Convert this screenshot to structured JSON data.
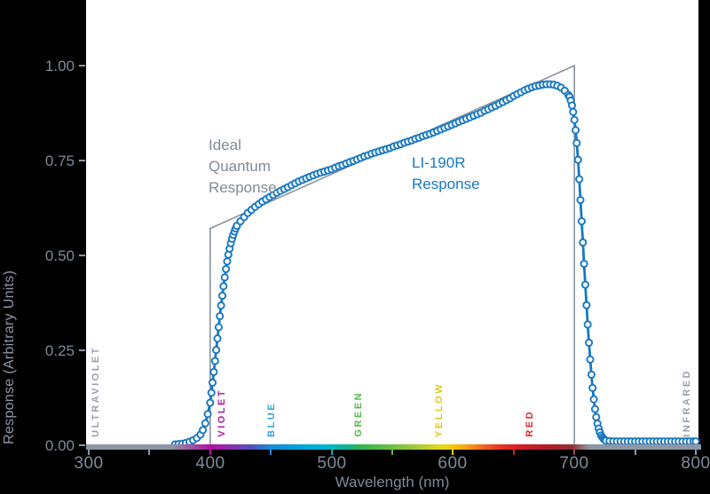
{
  "figure": {
    "background": "#000000",
    "panel_background": "#ffffff"
  },
  "chart_data": {
    "type": "line",
    "title": "",
    "xlabel": "Wavelength (nm)",
    "ylabel": "Response (Arbitrary Units)",
    "xlim": [
      300,
      800
    ],
    "ylim": [
      0,
      1.17
    ],
    "grid": false,
    "legend_position": "none",
    "x_ticks": [
      {
        "nm": 300,
        "label": "300",
        "color": "#8d97a5"
      },
      {
        "nm": 350,
        "label": "",
        "color": "#8d97a5"
      },
      {
        "nm": 400,
        "label": "400",
        "color": "#b012a0"
      },
      {
        "nm": 450,
        "label": "",
        "color": "#1a8ad5"
      },
      {
        "nm": 500,
        "label": "500",
        "color": "#00b2cf"
      },
      {
        "nm": 550,
        "label": "",
        "color": "#55ba47"
      },
      {
        "nm": 600,
        "label": "600",
        "color": "#f2c70b"
      },
      {
        "nm": 650,
        "label": "",
        "color": "#d21f26"
      },
      {
        "nm": 700,
        "label": "700",
        "color": "#8f4a55"
      },
      {
        "nm": 750,
        "label": "",
        "color": "#8d97a5"
      },
      {
        "nm": 800,
        "label": "800",
        "color": "#8d97a5"
      }
    ],
    "y_ticks": [
      {
        "value": 0.0,
        "label": "0.00"
      },
      {
        "value": 0.25,
        "label": "0.25"
      },
      {
        "value": 0.5,
        "label": "0.50"
      },
      {
        "value": 0.75,
        "label": "0.75"
      },
      {
        "value": 1.0,
        "label": "1.00"
      }
    ],
    "series": [
      {
        "name": "Ideal Quantum Response",
        "style": "line",
        "color": "#8a939f",
        "line_width": 1.6,
        "points": [
          [
            400,
            0
          ],
          [
            400,
            0.571
          ],
          [
            700,
            1.0
          ],
          [
            700,
            0
          ]
        ]
      },
      {
        "name": "LI-190R Response",
        "style": "line+markers",
        "color": "#1778c2",
        "marker_fill": "#ffffff",
        "line_width": 2.8,
        "marker_radius": 3.6,
        "points": [
          [
            371,
            0.002
          ],
          [
            374,
            0.003
          ],
          [
            377,
            0.004
          ],
          [
            380,
            0.006
          ],
          [
            383,
            0.009
          ],
          [
            386,
            0.013
          ],
          [
            389,
            0.019
          ],
          [
            392,
            0.028
          ],
          [
            394,
            0.04
          ],
          [
            396,
            0.058
          ],
          [
            398,
            0.082
          ],
          [
            400,
            0.112
          ],
          [
            401,
            0.138
          ],
          [
            402,
            0.165
          ],
          [
            403,
            0.193
          ],
          [
            404,
            0.222
          ],
          [
            405,
            0.251
          ],
          [
            406,
            0.281
          ],
          [
            407,
            0.311
          ],
          [
            408,
            0.34
          ],
          [
            409,
            0.368
          ],
          [
            410,
            0.394
          ],
          [
            411,
            0.419
          ],
          [
            412,
            0.442
          ],
          [
            413,
            0.464
          ],
          [
            414,
            0.484
          ],
          [
            415,
            0.502
          ],
          [
            416,
            0.518
          ],
          [
            417,
            0.532
          ],
          [
            418,
            0.544
          ],
          [
            419,
            0.554
          ],
          [
            420,
            0.563
          ],
          [
            421,
            0.571
          ],
          [
            422,
            0.578
          ],
          [
            425,
            0.59
          ],
          [
            428,
            0.601
          ],
          [
            431,
            0.612
          ],
          [
            434,
            0.62
          ],
          [
            437,
            0.628
          ],
          [
            440,
            0.635
          ],
          [
            443,
            0.642
          ],
          [
            446,
            0.648
          ],
          [
            449,
            0.654
          ],
          [
            452,
            0.659
          ],
          [
            455,
            0.665
          ],
          [
            458,
            0.67
          ],
          [
            461,
            0.675
          ],
          [
            464,
            0.68
          ],
          [
            467,
            0.685
          ],
          [
            470,
            0.69
          ],
          [
            473,
            0.695
          ],
          [
            476,
            0.699
          ],
          [
            479,
            0.703
          ],
          [
            482,
            0.707
          ],
          [
            485,
            0.711
          ],
          [
            488,
            0.715
          ],
          [
            491,
            0.718
          ],
          [
            494,
            0.721
          ],
          [
            497,
            0.724
          ],
          [
            500,
            0.727
          ],
          [
            503,
            0.731
          ],
          [
            506,
            0.735
          ],
          [
            509,
            0.738
          ],
          [
            512,
            0.742
          ],
          [
            515,
            0.746
          ],
          [
            518,
            0.749
          ],
          [
            521,
            0.753
          ],
          [
            524,
            0.757
          ],
          [
            527,
            0.761
          ],
          [
            530,
            0.764
          ],
          [
            533,
            0.768
          ],
          [
            536,
            0.771
          ],
          [
            539,
            0.774
          ],
          [
            542,
            0.777
          ],
          [
            545,
            0.78
          ],
          [
            548,
            0.783
          ],
          [
            551,
            0.787
          ],
          [
            554,
            0.79
          ],
          [
            557,
            0.793
          ],
          [
            560,
            0.797
          ],
          [
            563,
            0.8
          ],
          [
            566,
            0.803
          ],
          [
            569,
            0.807
          ],
          [
            572,
            0.81
          ],
          [
            575,
            0.814
          ],
          [
            578,
            0.817
          ],
          [
            581,
            0.82
          ],
          [
            584,
            0.824
          ],
          [
            587,
            0.828
          ],
          [
            590,
            0.832
          ],
          [
            593,
            0.836
          ],
          [
            596,
            0.84
          ],
          [
            599,
            0.844
          ],
          [
            602,
            0.848
          ],
          [
            605,
            0.852
          ],
          [
            608,
            0.856
          ],
          [
            611,
            0.86
          ],
          [
            614,
            0.864
          ],
          [
            617,
            0.868
          ],
          [
            620,
            0.872
          ],
          [
            623,
            0.876
          ],
          [
            626,
            0.881
          ],
          [
            629,
            0.885
          ],
          [
            632,
            0.89
          ],
          [
            635,
            0.894
          ],
          [
            638,
            0.899
          ],
          [
            641,
            0.904
          ],
          [
            644,
            0.909
          ],
          [
            647,
            0.914
          ],
          [
            650,
            0.92
          ],
          [
            653,
            0.925
          ],
          [
            656,
            0.93
          ],
          [
            659,
            0.935
          ],
          [
            662,
            0.939
          ],
          [
            665,
            0.943
          ],
          [
            668,
            0.946
          ],
          [
            671,
            0.948
          ],
          [
            674,
            0.95
          ],
          [
            677,
            0.951
          ],
          [
            680,
            0.951
          ],
          [
            683,
            0.95
          ],
          [
            686,
            0.947
          ],
          [
            689,
            0.942
          ],
          [
            692,
            0.934
          ],
          [
            695,
            0.923
          ],
          [
            696,
            0.918
          ],
          [
            697,
            0.908
          ],
          [
            698,
            0.895
          ],
          [
            699,
            0.878
          ],
          [
            700,
            0.857
          ],
          [
            701,
            0.83
          ],
          [
            702,
            0.796
          ],
          [
            703,
            0.752
          ],
          [
            704,
            0.701
          ],
          [
            705,
            0.646
          ],
          [
            706,
            0.59
          ],
          [
            707,
            0.534
          ],
          [
            708,
            0.478
          ],
          [
            709,
            0.423
          ],
          [
            710,
            0.369
          ],
          [
            711,
            0.318
          ],
          [
            712,
            0.27
          ],
          [
            713,
            0.226
          ],
          [
            714,
            0.186
          ],
          [
            715,
            0.151
          ],
          [
            716,
            0.121
          ],
          [
            717,
            0.095
          ],
          [
            718,
            0.074
          ],
          [
            719,
            0.057
          ],
          [
            720,
            0.044
          ],
          [
            721,
            0.034
          ],
          [
            722,
            0.026
          ],
          [
            723,
            0.021
          ],
          [
            724,
            0.017
          ],
          [
            725,
            0.014
          ],
          [
            726,
            0.012
          ],
          [
            729,
            0.011
          ],
          [
            732,
            0.01
          ],
          [
            735,
            0.01
          ],
          [
            738,
            0.01
          ],
          [
            741,
            0.01
          ],
          [
            744,
            0.01
          ],
          [
            747,
            0.01
          ],
          [
            750,
            0.01
          ],
          [
            753,
            0.01
          ],
          [
            756,
            0.01
          ],
          [
            759,
            0.01
          ],
          [
            762,
            0.01
          ],
          [
            765,
            0.01
          ],
          [
            768,
            0.01
          ],
          [
            771,
            0.01
          ],
          [
            774,
            0.01
          ],
          [
            777,
            0.01
          ],
          [
            780,
            0.01
          ],
          [
            783,
            0.01
          ],
          [
            786,
            0.01
          ],
          [
            789,
            0.01
          ],
          [
            792,
            0.01
          ],
          [
            795,
            0.01
          ],
          [
            798,
            0.01
          ],
          [
            800,
            0.01
          ]
        ]
      }
    ],
    "annotations": [
      {
        "id": "ideal-quantum-label",
        "text": "Ideal\nQuantum\nResponse",
        "color": "#7e8a99",
        "nm": 399,
        "value": 0.818
      },
      {
        "id": "li190r-label",
        "text": "LI-190R\nResponse",
        "color": "#1778c2",
        "nm": 566,
        "value": 0.771
      }
    ]
  },
  "spectrum_bar": {
    "stops": [
      {
        "nm": 300,
        "color": "#8d97a5"
      },
      {
        "nm": 368,
        "color": "#8d97a5"
      },
      {
        "nm": 385,
        "color": "#a3519f"
      },
      {
        "nm": 400,
        "color": "#b012a0"
      },
      {
        "nm": 415,
        "color": "#8f2cab"
      },
      {
        "nm": 435,
        "color": "#4f53c0"
      },
      {
        "nm": 450,
        "color": "#1a8ad5"
      },
      {
        "nm": 475,
        "color": "#00a4dc"
      },
      {
        "nm": 495,
        "color": "#00b2cf"
      },
      {
        "nm": 515,
        "color": "#18b289"
      },
      {
        "nm": 525,
        "color": "#35b54c"
      },
      {
        "nm": 545,
        "color": "#63bd45"
      },
      {
        "nm": 565,
        "color": "#97c83e"
      },
      {
        "nm": 580,
        "color": "#c8d22f"
      },
      {
        "nm": 592,
        "color": "#ead71c"
      },
      {
        "nm": 600,
        "color": "#f2c70b"
      },
      {
        "nm": 612,
        "color": "#f79c16"
      },
      {
        "nm": 625,
        "color": "#f26522"
      },
      {
        "nm": 640,
        "color": "#e23125"
      },
      {
        "nm": 655,
        "color": "#d21f26"
      },
      {
        "nm": 680,
        "color": "#ab1e23"
      },
      {
        "nm": 698,
        "color": "#93303a"
      },
      {
        "nm": 712,
        "color": "#8d97a5"
      },
      {
        "nm": 804,
        "color": "#8d97a5"
      }
    ],
    "bands": [
      {
        "label": "ULTRAVIOLET",
        "nm": 307,
        "color": "#97a1ad"
      },
      {
        "label": "VIOLET",
        "nm": 411,
        "color": "#b21d9e"
      },
      {
        "label": "BLUE",
        "nm": 452,
        "color": "#33a3dc"
      },
      {
        "label": "GREEN",
        "nm": 524,
        "color": "#55b948"
      },
      {
        "label": "YELLOW",
        "nm": 590,
        "color": "#e3c620"
      },
      {
        "label": "RED",
        "nm": 665,
        "color": "#e02d2d"
      },
      {
        "label": "INFRARED",
        "nm": 794,
        "color": "#97a1ad"
      }
    ]
  }
}
